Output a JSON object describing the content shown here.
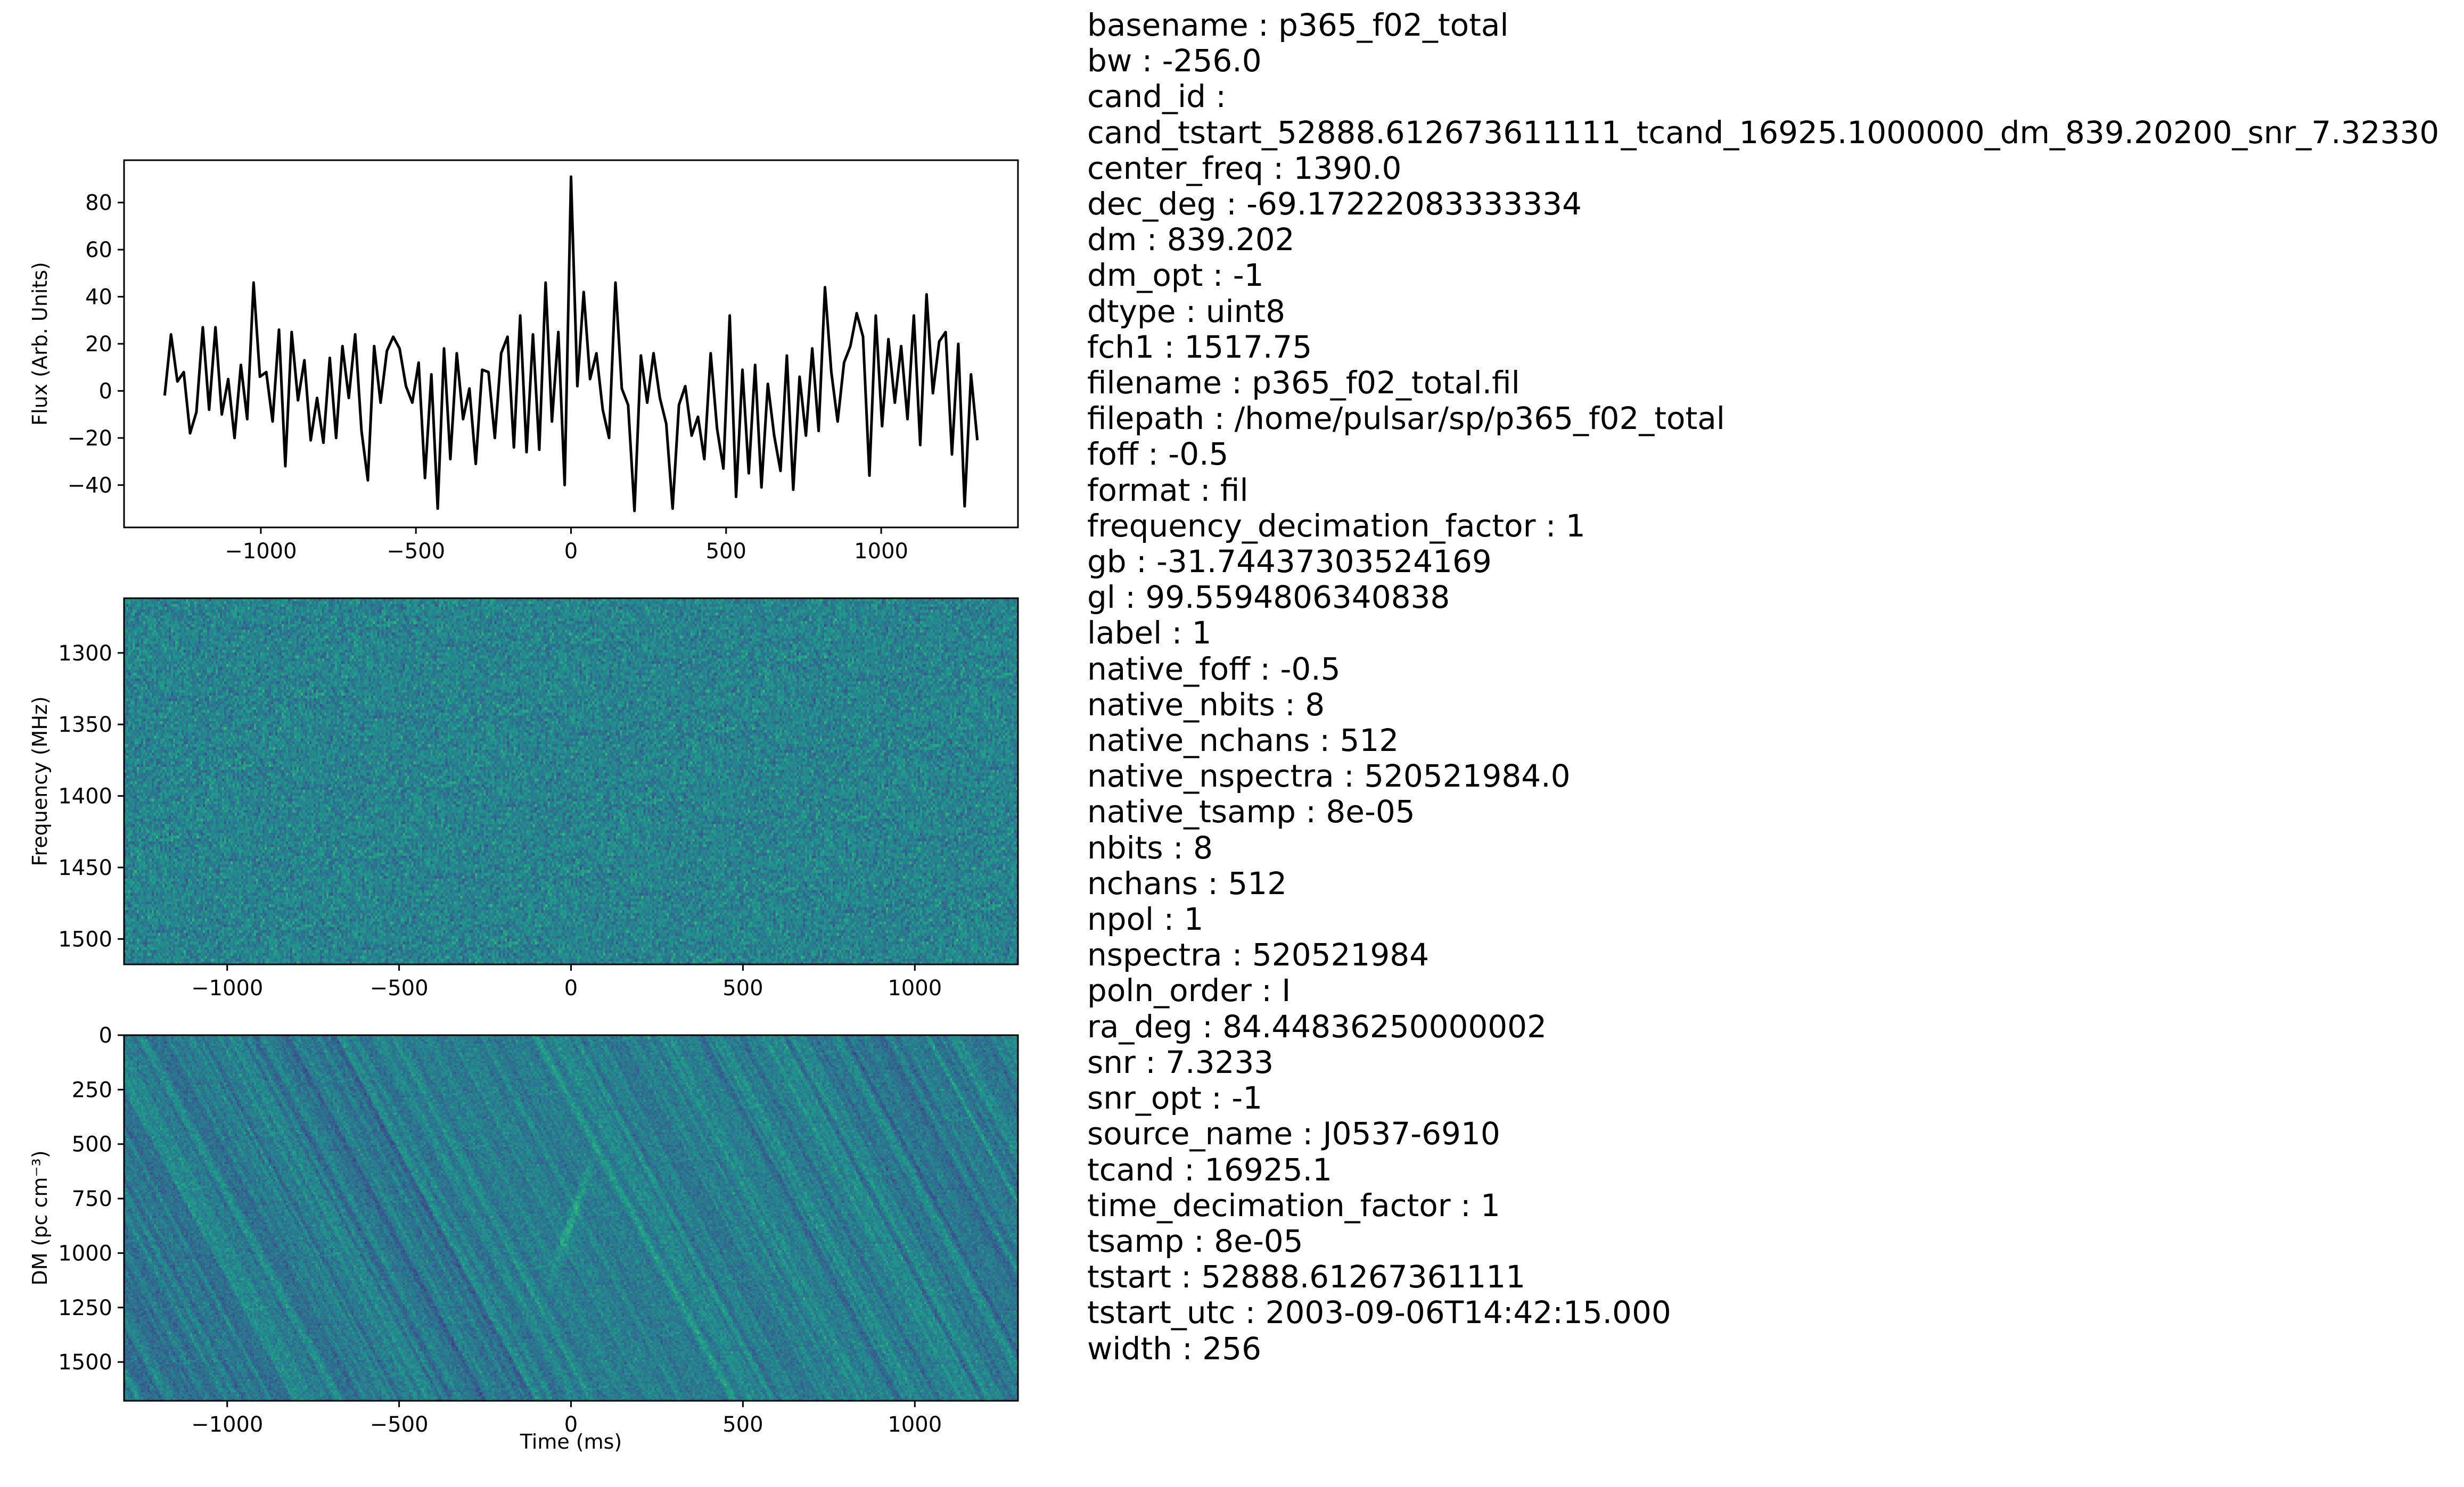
{
  "chart_data": [
    {
      "type": "line",
      "title": "",
      "xlabel": "",
      "ylabel": "Flux (Arb. Units)",
      "xlim": [
        -1441,
        1441
      ],
      "ylim": [
        -58,
        98
      ],
      "xticks": [
        -1000,
        -500,
        0,
        500,
        1000
      ],
      "yticks": [
        -40,
        -20,
        0,
        20,
        40,
        60,
        80
      ],
      "x_range": [
        -1310,
        1310
      ],
      "color": "#000000",
      "values": [
        -2,
        24,
        4,
        8,
        -18,
        -9,
        27,
        -8,
        27,
        -10,
        5,
        -20,
        11,
        -12,
        46,
        6,
        8,
        -13,
        26,
        -32,
        25,
        -4,
        13,
        -21,
        -3,
        -22,
        14,
        -20,
        19,
        -3,
        24,
        -17,
        -38,
        19,
        -5,
        17,
        23,
        18,
        2,
        -5,
        12,
        -37,
        7,
        -50,
        18,
        -29,
        16,
        -12,
        1,
        -31,
        9,
        8,
        -20,
        16,
        23,
        -24,
        32,
        -26,
        24,
        -25,
        46,
        -13,
        25,
        -40,
        91,
        2,
        42,
        5,
        16,
        -8,
        -20,
        46,
        1,
        -6,
        -51,
        15,
        -5,
        16,
        -3,
        -14,
        -50,
        -6,
        2,
        -19,
        -11,
        -29,
        16,
        -16,
        -33,
        32,
        -45,
        9,
        -35,
        11,
        -41,
        3,
        -19,
        -34,
        15,
        -42,
        6,
        -19,
        18,
        -17,
        44,
        8,
        -13,
        12,
        19,
        33,
        23,
        -36,
        32,
        -15,
        22,
        -5,
        19,
        -12,
        32,
        -23,
        41,
        -1,
        21,
        25,
        -27,
        20,
        -49,
        7,
        -21
      ]
    },
    {
      "type": "heatmap",
      "xlabel": "",
      "ylabel": "Frequency (MHz)",
      "xlim": [
        -1300,
        1300
      ],
      "ylim": [
        1517.75,
        1261.75
      ],
      "xticks": [
        -1000,
        -500,
        0,
        500,
        1000
      ],
      "yticks": [
        1300,
        1350,
        1400,
        1450,
        1500
      ],
      "colormap": "viridis"
    },
    {
      "type": "heatmap",
      "xlabel": "Time (ms)",
      "ylabel": "DM (pc cm⁻³)",
      "xlim": [
        -1300,
        1300
      ],
      "ylim": [
        1678,
        0
      ],
      "xticks": [
        -1000,
        -500,
        0,
        500,
        1000
      ],
      "yticks": [
        0,
        250,
        500,
        750,
        1000,
        1250,
        1500
      ],
      "colormap": "viridis",
      "peak": {
        "time": 0,
        "dm": 839.2
      }
    }
  ],
  "metadata": [
    {
      "key": "basename",
      "value": "p365_f02_total"
    },
    {
      "key": "bw",
      "value": "-256.0"
    },
    {
      "key": "cand_id",
      "value": ""
    },
    {
      "key": "",
      "value": "cand_tstart_52888.612673611111_tcand_16925.1000000_dm_839.20200_snr_7.32330"
    },
    {
      "key": "center_freq",
      "value": "1390.0"
    },
    {
      "key": "dec_deg",
      "value": "-69.17222083333334"
    },
    {
      "key": "dm",
      "value": "839.202"
    },
    {
      "key": "dm_opt",
      "value": "-1"
    },
    {
      "key": "dtype",
      "value": "uint8"
    },
    {
      "key": "fch1",
      "value": "1517.75"
    },
    {
      "key": "filename",
      "value": "p365_f02_total.fil"
    },
    {
      "key": "filepath",
      "value": "/home/pulsar/sp/p365_f02_total"
    },
    {
      "key": "foff",
      "value": "-0.5"
    },
    {
      "key": "format",
      "value": "fil"
    },
    {
      "key": "frequency_decimation_factor",
      "value": "1"
    },
    {
      "key": "gb",
      "value": "-31.74437303524169"
    },
    {
      "key": "gl",
      "value": "99.5594806340838"
    },
    {
      "key": "label",
      "value": "1"
    },
    {
      "key": "native_foff",
      "value": "-0.5"
    },
    {
      "key": "native_nbits",
      "value": "8"
    },
    {
      "key": "native_nchans",
      "value": "512"
    },
    {
      "key": "native_nspectra",
      "value": "520521984.0"
    },
    {
      "key": "native_tsamp",
      "value": "8e-05"
    },
    {
      "key": "nbits",
      "value": "8"
    },
    {
      "key": "nchans",
      "value": "512"
    },
    {
      "key": "npol",
      "value": "1"
    },
    {
      "key": "nspectra",
      "value": "520521984"
    },
    {
      "key": "poln_order",
      "value": "I"
    },
    {
      "key": "ra_deg",
      "value": "84.44836250000002"
    },
    {
      "key": "snr",
      "value": "7.3233"
    },
    {
      "key": "snr_opt",
      "value": "-1"
    },
    {
      "key": "source_name",
      "value": "J0537-6910"
    },
    {
      "key": "tcand",
      "value": "16925.1"
    },
    {
      "key": "time_decimation_factor",
      "value": "1"
    },
    {
      "key": "tsamp",
      "value": "8e-05"
    },
    {
      "key": "tstart",
      "value": "52888.61267361111"
    },
    {
      "key": "tstart_utc",
      "value": "2003-09-06T14:42:15.000"
    },
    {
      "key": "width",
      "value": "256"
    }
  ]
}
